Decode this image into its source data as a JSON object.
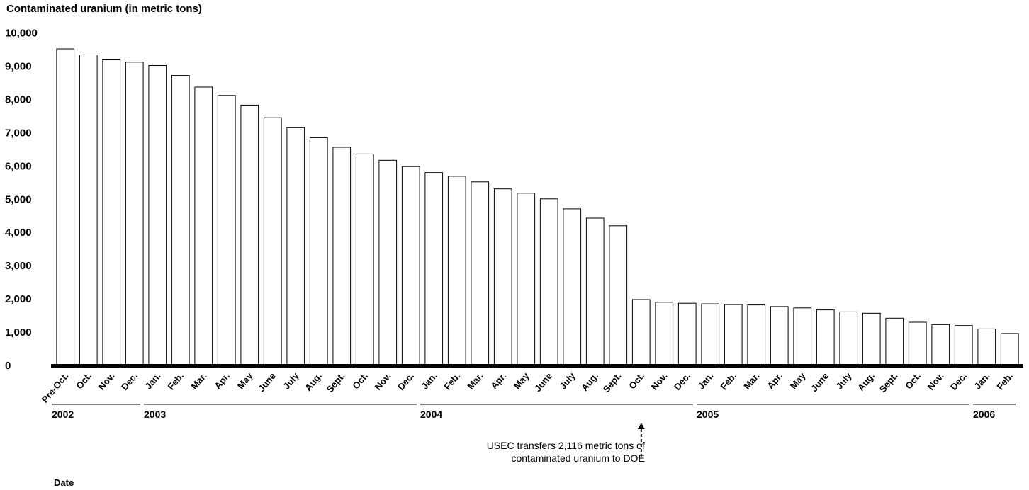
{
  "chart_data": {
    "type": "bar",
    "title": "",
    "ylabel": "Contaminated uranium (in metric tons)",
    "xlabel": "Date",
    "ylim": [
      0,
      10000
    ],
    "yticks": [
      0,
      1000,
      2000,
      3000,
      4000,
      5000,
      6000,
      7000,
      8000,
      9000,
      10000
    ],
    "ytick_labels": [
      "0",
      "1,000",
      "2,000",
      "3,000",
      "4,000",
      "5,000",
      "6,000",
      "7,000",
      "8,000",
      "9,000",
      "10,000"
    ],
    "grid": false,
    "categories": [
      "Pre-Oct.",
      "Oct.",
      "Nov.",
      "Dec.",
      "Jan.",
      "Feb.",
      "Mar.",
      "Apr.",
      "May",
      "June",
      "July",
      "Aug.",
      "Sept.",
      "Oct.",
      "Nov.",
      "Dec.",
      "Jan.",
      "Feb.",
      "Mar.",
      "Apr.",
      "May",
      "June",
      "July",
      "Aug.",
      "Sept.",
      "Oct.",
      "Nov.",
      "Dec.",
      "Jan.",
      "Feb.",
      "Mar.",
      "Apr.",
      "May",
      "June",
      "July",
      "Aug.",
      "Sept.",
      "Oct.",
      "Nov.",
      "Dec.",
      "Jan.",
      "Feb."
    ],
    "values": [
      9520,
      9340,
      9190,
      9120,
      9020,
      8720,
      8370,
      8120,
      7830,
      7450,
      7150,
      6850,
      6560,
      6360,
      6170,
      5980,
      5800,
      5690,
      5520,
      5310,
      5180,
      5010,
      4710,
      4430,
      4200,
      1980,
      1900,
      1870,
      1850,
      1830,
      1820,
      1770,
      1730,
      1670,
      1610,
      1570,
      1420,
      1300,
      1230,
      1200,
      1100,
      960
    ],
    "year_groups": [
      {
        "label": "2002",
        "start": 0,
        "end": 3
      },
      {
        "label": "2003",
        "start": 4,
        "end": 15
      },
      {
        "label": "2004",
        "start": 16,
        "end": 27
      },
      {
        "label": "2005",
        "start": 28,
        "end": 39
      },
      {
        "label": "2006",
        "start": 40,
        "end": 41
      }
    ],
    "annotation": {
      "lines": [
        "USEC transfers 2,116 metric tons of",
        "contaminated uranium to DOE"
      ],
      "category_index": 25
    }
  }
}
